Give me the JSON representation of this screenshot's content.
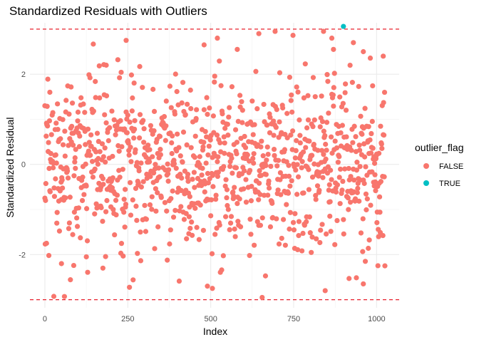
{
  "chart_data": {
    "type": "scatter",
    "title": "Standardized Residuals with Outliers",
    "xlabel": "Index",
    "ylabel": "Standardized Residual",
    "xlim": [
      -45,
      1068
    ],
    "ylim": [
      -3.18,
      3.14
    ],
    "x_ticks": [
      0,
      250,
      500,
      750,
      1000
    ],
    "x_tick_labels": [
      "0",
      "250",
      "500",
      "750",
      "1000"
    ],
    "y_ticks": [
      -2,
      0,
      2
    ],
    "y_tick_labels": [
      "-2",
      "0",
      "2"
    ],
    "grid": true,
    "reference_lines": [
      3,
      -3
    ],
    "reference_line_color": "#e8202c",
    "n_points": 1025,
    "legend": {
      "title": "outlier_flag",
      "placement": "right",
      "entries": [
        {
          "label": "FALSE",
          "color": "#f8766d"
        },
        {
          "label": "TRUE",
          "color": "#00bfc4"
        }
      ]
    },
    "outliers": [
      {
        "x": 900,
        "y": 3.06,
        "flag": "TRUE"
      }
    ],
    "sample_points": [
      {
        "x": 0,
        "y": 1.3
      },
      {
        "x": 5,
        "y": -1.75
      },
      {
        "x": 15,
        "y": 1.6
      },
      {
        "x": 50,
        "y": -2.2
      },
      {
        "x": 125,
        "y": -2.05
      },
      {
        "x": 175,
        "y": -2.3
      },
      {
        "x": 185,
        "y": 2.2
      },
      {
        "x": 245,
        "y": 2.75
      },
      {
        "x": 480,
        "y": 2.65
      },
      {
        "x": 520,
        "y": 2.8
      },
      {
        "x": 580,
        "y": 2.55
      },
      {
        "x": 645,
        "y": 2.9
      },
      {
        "x": 655,
        "y": -2.95
      },
      {
        "x": 840,
        "y": 2.95
      },
      {
        "x": 865,
        "y": 2.8
      },
      {
        "x": 870,
        "y": 2.55
      },
      {
        "x": 930,
        "y": 2.7
      },
      {
        "x": 960,
        "y": 2.5
      },
      {
        "x": 1020,
        "y": 2.4
      },
      {
        "x": 490,
        "y": -2.7
      },
      {
        "x": 505,
        "y": -2.75
      },
      {
        "x": 1025,
        "y": -2.25
      },
      {
        "x": 960,
        "y": -2.65
      },
      {
        "x": 845,
        "y": -2.8
      }
    ]
  }
}
